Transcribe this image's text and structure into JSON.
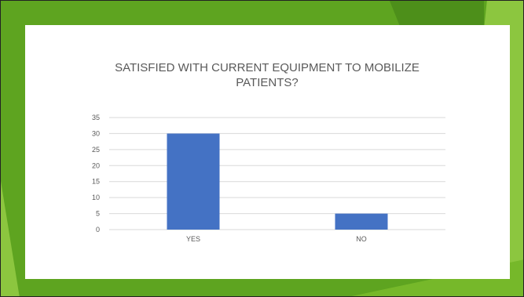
{
  "theme": {
    "background": "#5ea420",
    "facet_light": "#8cc63f",
    "facet_mid": "#76b82a",
    "facet_dark": "#4d8f1a",
    "panel": "#ffffff",
    "bar_color": "#4472c4",
    "grid_color": "#d9d9d9",
    "text_color": "#595959"
  },
  "chart_data": {
    "type": "bar",
    "title_lines": [
      "SATISFIED WITH CURRENT EQUIPMENT TO MOBILIZE",
      "PATIENTS?"
    ],
    "categories": [
      "YES",
      "NO"
    ],
    "values": [
      30,
      5
    ],
    "xlabel": "",
    "ylabel": "",
    "ylim": [
      0,
      35
    ],
    "yticks": [
      0,
      5,
      10,
      15,
      20,
      25,
      30,
      35
    ],
    "grid": true,
    "legend": "none"
  }
}
